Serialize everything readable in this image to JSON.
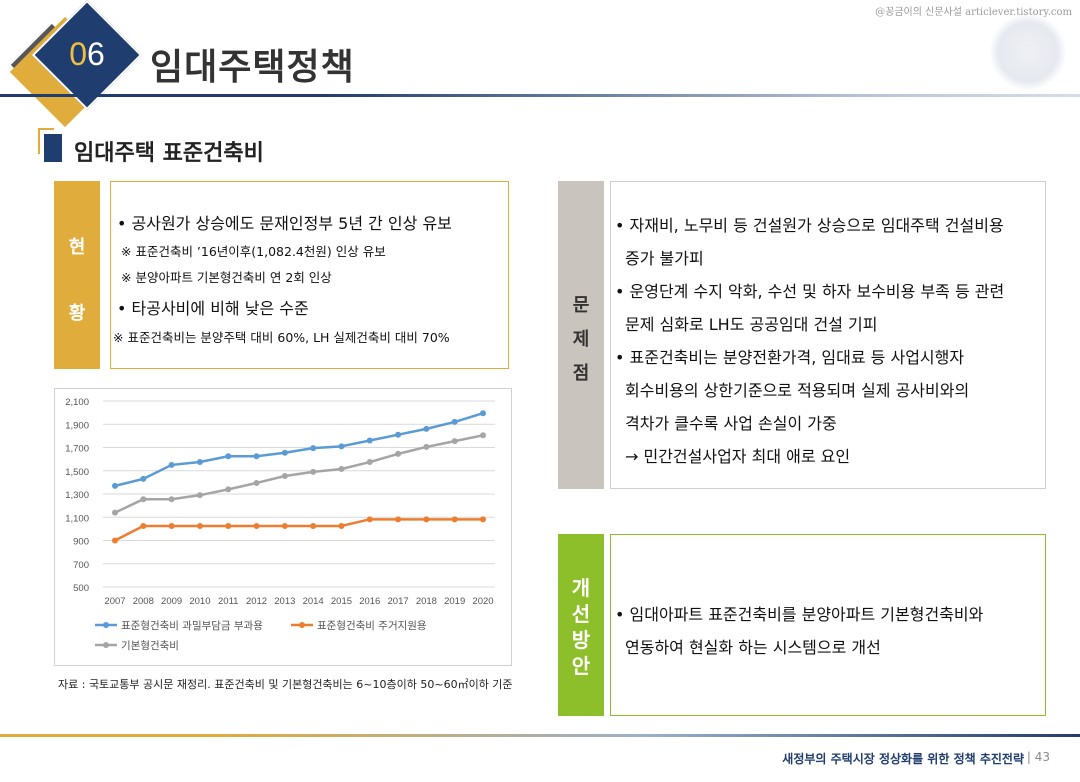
{
  "watermark": "@꽁금이의 신문사설 articlever.tistory.com",
  "header": {
    "number": "06",
    "title": "임대주택정책"
  },
  "subtitle": "임대주택 표준건축비",
  "status": {
    "tag_chars": [
      "현",
      "황"
    ],
    "lines": [
      "• 공사원가 상승에도 문재인정부 5년 간 인상 유보",
      "※ 표준건축비 ’16년이후(1,082.4천원) 인상 유보",
      "※ 분양아파트 기본형건축비 연 2회 인상",
      "• 타공사비에 비해 낮은 수준",
      "※  표준건축비는 분양주택 대비 60%, LH 실제건축비 대비 70%"
    ]
  },
  "problems": {
    "tag_chars": [
      "문",
      "제",
      "점"
    ],
    "lines": [
      "• 자재비, 노무비 등 건설원가 상승으로 임대주택 건설비용",
      "증가 불가피",
      "• 운영단계 수지 악화, 수선 및 하자 보수비용 부족 등 관련",
      "문제 심화로 LH도 공공임대 건설 기피",
      "• 표준건축비는 분양전환가격, 임대료 등 사업시행자",
      "회수비용의 상한기준으로 적용되며 실제 공사비와의",
      "격차가 클수록 사업 손실이 가중",
      "→ 민간건설사업자 최대 애로 요인"
    ]
  },
  "improvement": {
    "tag_chars": [
      "개",
      "선",
      "방",
      "안"
    ],
    "lines": [
      "• 임대아파트 표준건축비를 분양아파트 기본형건축비와",
      "연동하여 현실화 하는 시스템으로 개선"
    ]
  },
  "chart_data": {
    "type": "line",
    "categories": [
      "2007",
      "2008",
      "2009",
      "2010",
      "2011",
      "2012",
      "2013",
      "2014",
      "2015",
      "2016",
      "2017",
      "2018",
      "2019",
      "2020"
    ],
    "ylim": [
      500,
      2100
    ],
    "yticks": [
      "500",
      "700",
      "900",
      "1,100",
      "1,300",
      "1,500",
      "1,700",
      "1,900",
      "2,100"
    ],
    "ytick_values": [
      500,
      700,
      900,
      1100,
      1300,
      1500,
      1700,
      1900,
      2100
    ],
    "grid": true,
    "legend_position": "bottom",
    "series": [
      {
        "name": "표준형건축비 과밀부담금 부과용",
        "color": "#5b9bd5",
        "values": [
          1370,
          1430,
          1550,
          1575,
          1625,
          1625,
          1655,
          1695,
          1710,
          1760,
          1810,
          1860,
          1920,
          1995
        ]
      },
      {
        "name": "표준형건축비 주거지원용",
        "color": "#ed7d31",
        "values": [
          900,
          1025,
          1025,
          1025,
          1025,
          1025,
          1025,
          1025,
          1025,
          1082,
          1082,
          1082,
          1082,
          1082
        ]
      },
      {
        "name": "기본형건축비",
        "color": "#a5a5a5",
        "values": [
          1140,
          1255,
          1255,
          1290,
          1340,
          1395,
          1455,
          1490,
          1515,
          1575,
          1645,
          1705,
          1755,
          1805
        ]
      }
    ]
  },
  "source_note": "자료 : 국토교통부 공시문 재정리. 표준건축비 및 기본형건축비는 6~10층이하 50~60㎡이하 기준",
  "footer": {
    "text": "새정부의 주택시장 정상화를 위한 정책 추진전략",
    "page": "| 43"
  }
}
